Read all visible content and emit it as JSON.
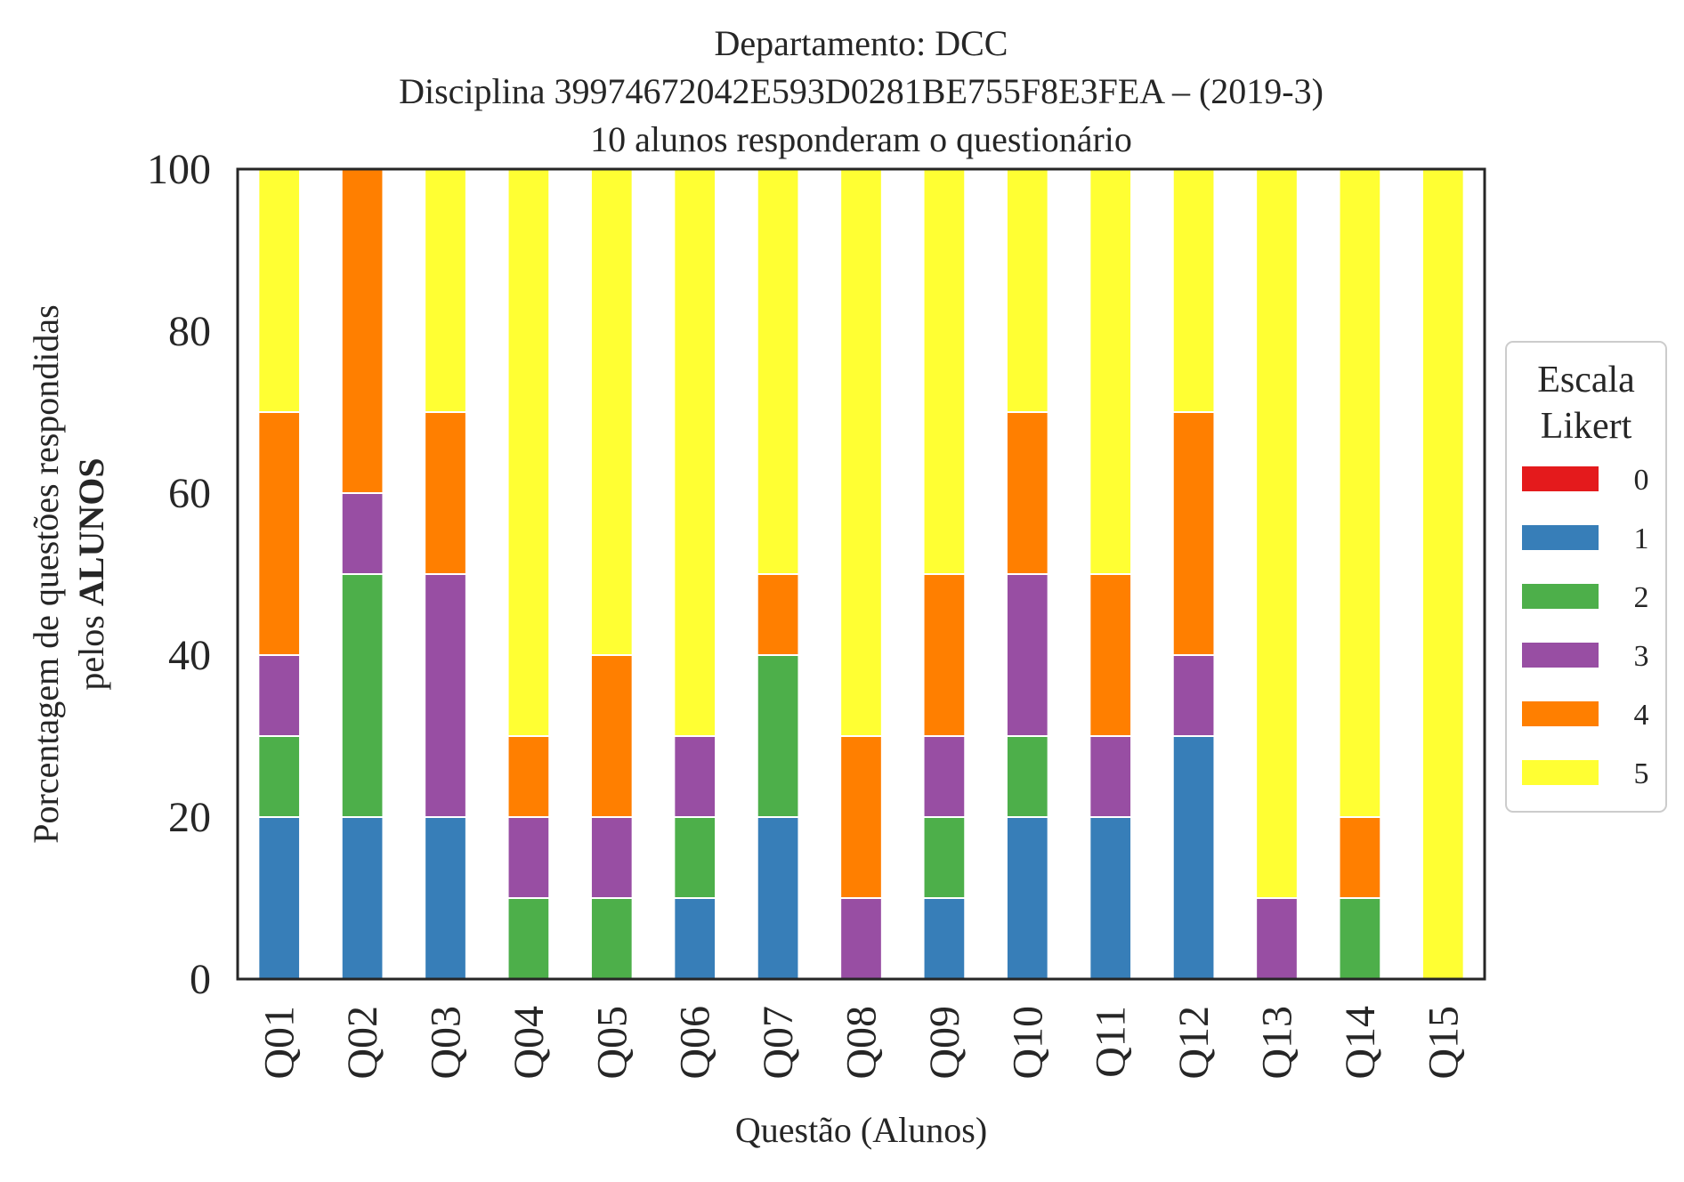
{
  "chart_data": {
    "type": "bar",
    "stacked": true,
    "title_lines": [
      "Departamento: DCC",
      "Disciplina 39974672042E593D0281BE755F8E3FEA – (2019-3)",
      "10 alunos responderam o questionário"
    ],
    "xlabel": "Questão (Alunos)",
    "ylabel_line1": "Porcentagem de questões respondidas",
    "ylabel_line2_prefix": "pelos ",
    "ylabel_line2_bold": "ALUNOS",
    "ylim": [
      0,
      100
    ],
    "yticks": [
      0,
      20,
      40,
      60,
      80,
      100
    ],
    "grid": false,
    "legend_placement": "right",
    "legend_title_lines": [
      "Escala",
      "Likert"
    ],
    "categories": [
      "Q01",
      "Q02",
      "Q03",
      "Q04",
      "Q05",
      "Q06",
      "Q07",
      "Q08",
      "Q09",
      "Q10",
      "Q11",
      "Q12",
      "Q13",
      "Q14",
      "Q15"
    ],
    "series": [
      {
        "name": "0",
        "color": "#e41a1c",
        "values": [
          0,
          0,
          0,
          0,
          0,
          0,
          0,
          0,
          0,
          0,
          0,
          0,
          0,
          0,
          0
        ]
      },
      {
        "name": "1",
        "color": "#377eb8",
        "values": [
          20,
          20,
          20,
          0,
          0,
          10,
          20,
          0,
          10,
          20,
          20,
          30,
          0,
          0,
          0
        ]
      },
      {
        "name": "2",
        "color": "#4daf4a",
        "values": [
          10,
          30,
          0,
          10,
          10,
          10,
          20,
          0,
          10,
          10,
          0,
          0,
          0,
          10,
          0
        ]
      },
      {
        "name": "3",
        "color": "#984ea3",
        "values": [
          10,
          10,
          30,
          10,
          10,
          10,
          0,
          10,
          10,
          20,
          10,
          10,
          10,
          0,
          0
        ]
      },
      {
        "name": "4",
        "color": "#ff7f00",
        "values": [
          30,
          40,
          20,
          10,
          20,
          0,
          10,
          20,
          20,
          20,
          20,
          30,
          0,
          10,
          0
        ]
      },
      {
        "name": "5",
        "color": "#ffff33",
        "values": [
          30,
          0,
          30,
          70,
          60,
          70,
          50,
          70,
          50,
          30,
          50,
          30,
          90,
          80,
          100
        ]
      }
    ]
  }
}
